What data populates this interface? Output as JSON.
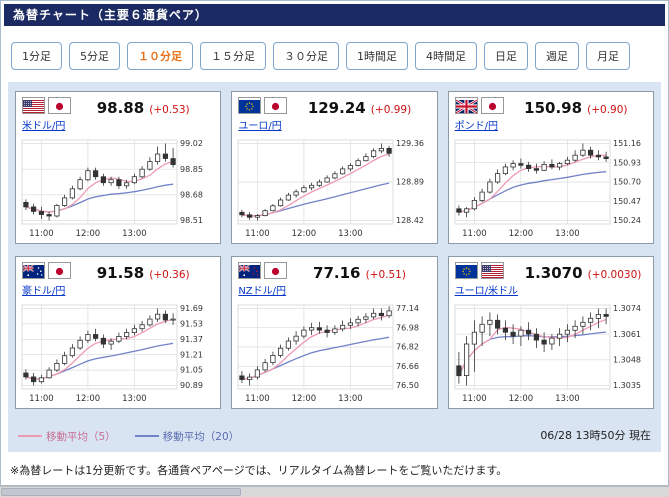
{
  "header": {
    "title": "為替チャート（主要６通貨ペア）"
  },
  "timeframes": [
    {
      "label": "1分足",
      "active": false
    },
    {
      "label": "5分足",
      "active": false
    },
    {
      "label": "１０分足",
      "active": true
    },
    {
      "label": "１５分足",
      "active": false
    },
    {
      "label": "３０分足",
      "active": false
    },
    {
      "label": "1時間足",
      "active": false
    },
    {
      "label": "4時間足",
      "active": false
    },
    {
      "label": "日足",
      "active": false
    },
    {
      "label": "週足",
      "active": false
    },
    {
      "label": "月足",
      "active": false
    }
  ],
  "legend": {
    "ma5": "移動平均（5）",
    "ma20": "移動平均（20）"
  },
  "footer": {
    "timestamp": "06/28 13時50分 現在",
    "note": "※為替レートは1分更新です。各通貨ペアページでは、リアルタイム為替レートをご覧いただけます。"
  },
  "colors": {
    "ma5": "#ee9ab4",
    "ma20": "#7282c8",
    "candle": "#333333",
    "up_fill": "#ffffff",
    "down_fill": "#333333",
    "selected_tab": "#e8731a",
    "link": "#0637c9",
    "change": "#cc1111",
    "panel_bg": "#d8e4f2",
    "titlebar_bg": "#1b2a63"
  },
  "chart_data": [
    {
      "type": "candlestick",
      "pair": "米ドル/円",
      "flags": [
        "us",
        "jp"
      ],
      "price": "98.88",
      "change": "(+0.53)",
      "y_ticks": [
        "99.02",
        "98.85",
        "98.68",
        "98.51"
      ],
      "x_ticks": [
        "11:00",
        "12:00",
        "13:00"
      ],
      "x_tick_index": [
        2,
        8,
        14
      ],
      "candles": [
        [
          98.63,
          98.65,
          98.58,
          98.6
        ],
        [
          98.6,
          98.62,
          98.55,
          98.57
        ],
        [
          98.57,
          98.6,
          98.52,
          98.55
        ],
        [
          98.55,
          98.57,
          98.51,
          98.54
        ],
        [
          98.54,
          98.62,
          98.53,
          98.61
        ],
        [
          98.61,
          98.68,
          98.6,
          98.66
        ],
        [
          98.66,
          98.74,
          98.65,
          98.72
        ],
        [
          98.72,
          98.8,
          98.71,
          98.78
        ],
        [
          98.78,
          98.86,
          98.77,
          98.84
        ],
        [
          98.84,
          98.86,
          98.78,
          98.8
        ],
        [
          98.8,
          98.82,
          98.74,
          98.76
        ],
        [
          98.76,
          98.8,
          98.74,
          98.78
        ],
        [
          98.78,
          98.8,
          98.72,
          98.74
        ],
        [
          98.74,
          98.78,
          98.72,
          98.76
        ],
        [
          98.76,
          98.82,
          98.75,
          98.8
        ],
        [
          98.8,
          98.87,
          98.79,
          98.85
        ],
        [
          98.85,
          98.93,
          98.84,
          98.9
        ],
        [
          98.9,
          99.0,
          98.88,
          98.95
        ],
        [
          98.95,
          99.02,
          98.9,
          98.92
        ],
        [
          98.92,
          98.99,
          98.86,
          98.88
        ]
      ]
    },
    {
      "type": "candlestick",
      "pair": "ユーロ/円",
      "flags": [
        "eu",
        "jp"
      ],
      "price": "129.24",
      "change": "(+0.99)",
      "y_ticks": [
        "129.36",
        "128.89",
        "128.42"
      ],
      "x_ticks": [
        "11:00",
        "12:00",
        "13:00"
      ],
      "x_tick_index": [
        2,
        8,
        14
      ],
      "candles": [
        [
          128.52,
          128.55,
          128.46,
          128.49
        ],
        [
          128.49,
          128.52,
          128.43,
          128.46
        ],
        [
          128.46,
          128.5,
          128.42,
          128.48
        ],
        [
          128.48,
          128.56,
          128.47,
          128.54
        ],
        [
          128.54,
          128.62,
          128.53,
          128.6
        ],
        [
          128.6,
          128.7,
          128.59,
          128.67
        ],
        [
          128.67,
          128.76,
          128.66,
          128.73
        ],
        [
          128.73,
          128.8,
          128.7,
          128.77
        ],
        [
          128.77,
          128.85,
          128.76,
          128.82
        ],
        [
          128.82,
          128.88,
          128.79,
          128.85
        ],
        [
          128.85,
          128.92,
          128.83,
          128.89
        ],
        [
          128.89,
          128.97,
          128.88,
          128.94
        ],
        [
          128.94,
          129.02,
          128.92,
          128.99
        ],
        [
          128.99,
          129.08,
          128.98,
          129.05
        ],
        [
          129.05,
          129.12,
          129.02,
          129.09
        ],
        [
          129.09,
          129.18,
          129.08,
          129.15
        ],
        [
          129.15,
          129.24,
          129.14,
          129.2
        ],
        [
          129.2,
          129.3,
          129.18,
          129.27
        ],
        [
          129.27,
          129.36,
          129.24,
          129.3
        ],
        [
          129.3,
          129.33,
          129.2,
          129.24
        ]
      ]
    },
    {
      "type": "candlestick",
      "pair": "ポンド/円",
      "flags": [
        "uk",
        "jp"
      ],
      "price": "150.98",
      "change": "(+0.90)",
      "y_ticks": [
        "151.16",
        "150.93",
        "150.70",
        "150.47",
        "150.24"
      ],
      "x_ticks": [
        "11:00",
        "12:00",
        "13:00"
      ],
      "x_tick_index": [
        2,
        8,
        14
      ],
      "candles": [
        [
          150.38,
          150.42,
          150.3,
          150.34
        ],
        [
          150.34,
          150.4,
          150.28,
          150.38
        ],
        [
          150.38,
          150.52,
          150.36,
          150.48
        ],
        [
          150.48,
          150.62,
          150.46,
          150.58
        ],
        [
          150.58,
          150.74,
          150.56,
          150.7
        ],
        [
          150.7,
          150.85,
          150.68,
          150.8
        ],
        [
          150.8,
          150.92,
          150.78,
          150.88
        ],
        [
          150.88,
          150.96,
          150.84,
          150.92
        ],
        [
          150.92,
          150.98,
          150.86,
          150.9
        ],
        [
          150.9,
          150.94,
          150.82,
          150.86
        ],
        [
          150.86,
          150.92,
          150.8,
          150.84
        ],
        [
          150.84,
          150.95,
          150.83,
          150.91
        ],
        [
          150.91,
          150.97,
          150.85,
          150.88
        ],
        [
          150.88,
          150.94,
          150.84,
          150.92
        ],
        [
          150.92,
          151.0,
          150.9,
          150.96
        ],
        [
          150.96,
          151.08,
          150.94,
          151.02
        ],
        [
          151.02,
          151.16,
          151.0,
          151.08
        ],
        [
          151.08,
          151.12,
          150.98,
          151.02
        ],
        [
          151.02,
          151.08,
          150.96,
          151.0
        ],
        [
          151.0,
          151.06,
          150.94,
          150.98
        ]
      ]
    },
    {
      "type": "candlestick",
      "pair": "豪ドル/円",
      "flags": [
        "au",
        "jp"
      ],
      "price": "91.58",
      "change": "(+0.36)",
      "y_ticks": [
        "91.69",
        "91.53",
        "91.37",
        "91.21",
        "91.05",
        "90.89"
      ],
      "x_ticks": [
        "11:00",
        "12:00",
        "13:00"
      ],
      "x_tick_index": [
        2,
        8,
        14
      ],
      "candles": [
        [
          91.02,
          91.06,
          90.95,
          90.98
        ],
        [
          90.98,
          91.02,
          90.89,
          90.93
        ],
        [
          90.93,
          91.0,
          90.91,
          90.97
        ],
        [
          90.97,
          91.08,
          90.96,
          91.05
        ],
        [
          91.05,
          91.16,
          91.03,
          91.12
        ],
        [
          91.12,
          91.24,
          91.1,
          91.2
        ],
        [
          91.2,
          91.32,
          91.18,
          91.28
        ],
        [
          91.28,
          91.4,
          91.26,
          91.36
        ],
        [
          91.36,
          91.46,
          91.33,
          91.42
        ],
        [
          91.42,
          91.48,
          91.35,
          91.38
        ],
        [
          91.38,
          91.42,
          91.28,
          91.32
        ],
        [
          91.32,
          91.38,
          91.26,
          91.35
        ],
        [
          91.35,
          91.44,
          91.33,
          91.4
        ],
        [
          91.4,
          91.48,
          91.37,
          91.44
        ],
        [
          91.44,
          91.52,
          91.41,
          91.48
        ],
        [
          91.48,
          91.56,
          91.45,
          91.52
        ],
        [
          91.52,
          91.62,
          91.5,
          91.58
        ],
        [
          91.58,
          91.69,
          91.55,
          91.63
        ],
        [
          91.63,
          91.67,
          91.54,
          91.57
        ],
        [
          91.57,
          91.64,
          91.52,
          91.58
        ]
      ]
    },
    {
      "type": "candlestick",
      "pair": "NZドル/円",
      "flags": [
        "nz",
        "jp"
      ],
      "price": "77.16",
      "change": "(+0.51)",
      "y_ticks": [
        "77.14",
        "76.98",
        "76.82",
        "76.66",
        "76.50"
      ],
      "x_ticks": [
        "11:00",
        "12:00",
        "13:00"
      ],
      "x_tick_index": [
        2,
        8,
        14
      ],
      "candles": [
        [
          76.58,
          76.62,
          76.52,
          76.55
        ],
        [
          76.55,
          76.6,
          76.5,
          76.57
        ],
        [
          76.57,
          76.66,
          76.55,
          76.63
        ],
        [
          76.63,
          76.72,
          76.61,
          76.69
        ],
        [
          76.69,
          76.78,
          76.67,
          76.75
        ],
        [
          76.75,
          76.84,
          76.73,
          76.81
        ],
        [
          76.81,
          76.9,
          76.79,
          76.87
        ],
        [
          76.87,
          76.95,
          76.84,
          76.91
        ],
        [
          76.91,
          76.99,
          76.89,
          76.96
        ],
        [
          76.96,
          77.02,
          76.92,
          76.98
        ],
        [
          76.98,
          77.03,
          76.93,
          76.96
        ],
        [
          76.96,
          77.0,
          76.9,
          76.94
        ],
        [
          76.94,
          77.0,
          76.92,
          76.97
        ],
        [
          76.97,
          77.04,
          76.95,
          77.0
        ],
        [
          77.0,
          77.06,
          76.97,
          77.02
        ],
        [
          77.02,
          77.08,
          76.99,
          77.05
        ],
        [
          77.05,
          77.1,
          77.02,
          77.07
        ],
        [
          77.07,
          77.14,
          77.05,
          77.1
        ],
        [
          77.1,
          77.14,
          77.04,
          77.08
        ],
        [
          77.08,
          77.16,
          77.06,
          77.12
        ]
      ]
    },
    {
      "type": "candlestick",
      "pair": "ユーロ/米ドル",
      "flags": [
        "eu",
        "us"
      ],
      "price": "1.3070",
      "change": "(+0.0030)",
      "y_ticks": [
        "1.3074",
        "1.3061",
        "1.3048",
        "1.3035"
      ],
      "x_ticks": [
        "11:00",
        "12:00",
        "13:00"
      ],
      "x_tick_index": [
        2,
        8,
        14
      ],
      "candles": [
        [
          1.3045,
          1.3052,
          1.3036,
          1.304
        ],
        [
          1.304,
          1.306,
          1.3035,
          1.3056
        ],
        [
          1.3056,
          1.3068,
          1.3042,
          1.3062
        ],
        [
          1.3062,
          1.307,
          1.3055,
          1.3066
        ],
        [
          1.3066,
          1.3072,
          1.306,
          1.3068
        ],
        [
          1.3068,
          1.3071,
          1.3061,
          1.3064
        ],
        [
          1.3064,
          1.3068,
          1.3058,
          1.3062
        ],
        [
          1.3062,
          1.3066,
          1.3056,
          1.306
        ],
        [
          1.306,
          1.3065,
          1.3055,
          1.3063
        ],
        [
          1.3063,
          1.3067,
          1.3058,
          1.3061
        ],
        [
          1.3061,
          1.3064,
          1.3054,
          1.3058
        ],
        [
          1.3058,
          1.3062,
          1.3052,
          1.3056
        ],
        [
          1.3056,
          1.3061,
          1.3053,
          1.3059
        ],
        [
          1.3059,
          1.3064,
          1.3055,
          1.3061
        ],
        [
          1.3061,
          1.3066,
          1.3057,
          1.3063
        ],
        [
          1.3063,
          1.3068,
          1.3059,
          1.3065
        ],
        [
          1.3065,
          1.307,
          1.3061,
          1.3067
        ],
        [
          1.3067,
          1.3072,
          1.3063,
          1.3069
        ],
        [
          1.3069,
          1.3074,
          1.3064,
          1.3071
        ],
        [
          1.3071,
          1.3074,
          1.3066,
          1.307
        ]
      ]
    }
  ]
}
